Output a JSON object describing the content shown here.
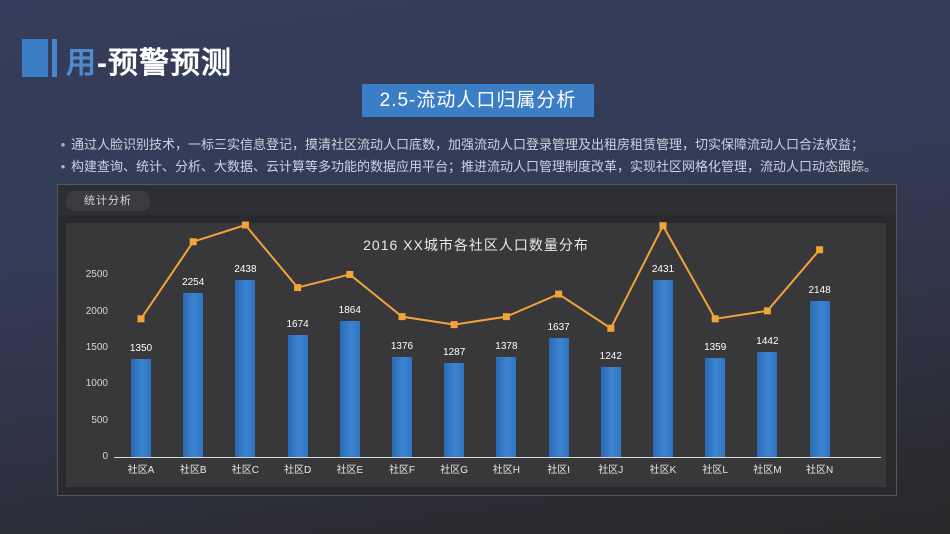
{
  "slide": {
    "title": {
      "highlight": "用",
      "rest": "-预警预测"
    },
    "banner": "2.5-流动人口归属分析",
    "bullets": [
      {
        "marker": "•",
        "text": "通过人脸识别技术，一标三实信息登记，摸清社区流动人口底数，加强流动人口登录管理及出租房租赁管理，切实保障流动人口合法权益；"
      },
      {
        "marker": "•",
        "text": "构建查询、统计、分析、大数据、云计算等多功能的数据应用平台；推进流动人口管理制度改革，实现社区网格化管理，流动人口动态跟踪。"
      }
    ],
    "panel": {
      "tab_label": "统计分析"
    }
  },
  "colors": {
    "accent_blue": "#3b7ec5",
    "bar_blue": "#2f78c8",
    "line_orange": "#f2a339",
    "plot_bg": "#38383b",
    "panel_bg": "#2a2a2c"
  },
  "chart_data": {
    "type": "bar",
    "title": "2016  XX城市各社区人口数量分布",
    "categories": [
      "社区A",
      "社区B",
      "社区C",
      "社区D",
      "社区E",
      "社区F",
      "社区G",
      "社区H",
      "社区I",
      "社区J",
      "社区K",
      "社区L",
      "社区M",
      "社区N"
    ],
    "series": [
      {
        "type": "bar",
        "values": [
          1350,
          2254,
          2438,
          1674,
          1864,
          1376,
          1287,
          1378,
          1637,
          1242,
          2431,
          1359,
          1442,
          2148
        ],
        "data_labels": true,
        "color": "#2f78c8"
      },
      {
        "type": "line",
        "values": [
          1900,
          2960,
          3190,
          2330,
          2510,
          1930,
          1820,
          1930,
          2240,
          1770,
          3180,
          1900,
          2010,
          2850
        ],
        "data_labels": false,
        "color": "#f2a339",
        "values_estimated": true
      }
    ],
    "xlabel": "",
    "ylabel": "",
    "y_ticks": [
      0,
      500,
      1000,
      1500,
      2000,
      2500
    ],
    "ylim": [
      0,
      3300
    ],
    "grid": false,
    "legend": false
  }
}
